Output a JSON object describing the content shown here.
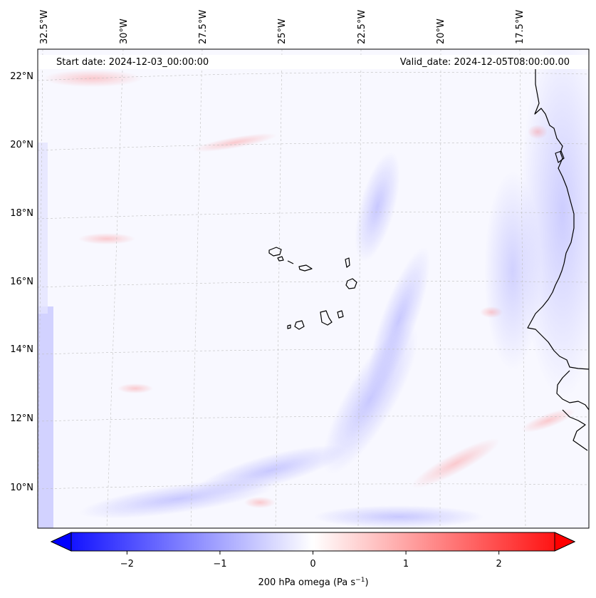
{
  "map": {
    "start_date": "Start date: 2024-12-03_00:00:00",
    "valid_date": "Valid_date: 2024-12-05T08:00:00.00",
    "lon_labels": [
      "32.5°W",
      "30°W",
      "27.5°W",
      "25°W",
      "22.5°W",
      "20°W",
      "17.5°W"
    ],
    "lat_labels": [
      "22°N",
      "20°N",
      "18°N",
      "16°N",
      "14°N",
      "12°N",
      "10°N"
    ],
    "field": "200 hPa omega",
    "colormap": "bwr",
    "coastline_color": "#000000"
  },
  "colorbar": {
    "label_main": "200 hPa omega (Pa s",
    "label_exp": "−1",
    "label_close": ")",
    "ticks": [
      "−2",
      "−1",
      "0",
      "1",
      "2"
    ],
    "tick_values": [
      -2,
      -1,
      0,
      1,
      2
    ],
    "range": [
      -2.6,
      2.6
    ],
    "extend": "both",
    "colors": {
      "min": "#0000ff",
      "mid": "#ffffff",
      "max": "#ff0000"
    }
  }
}
